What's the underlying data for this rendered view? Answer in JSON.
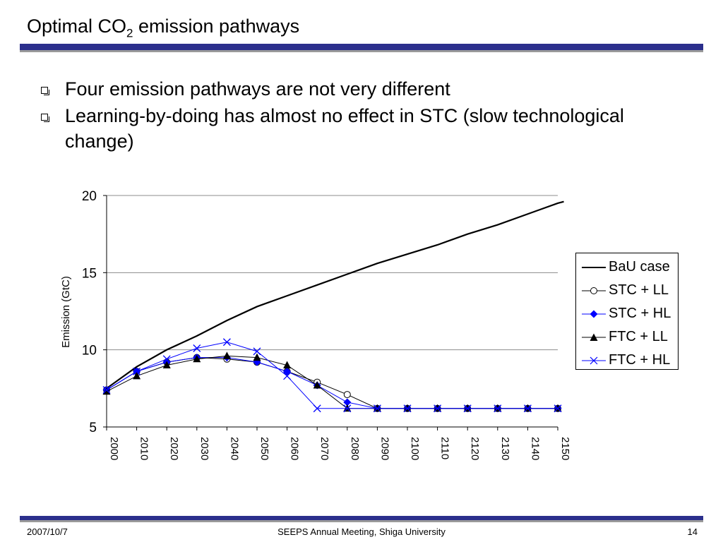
{
  "slide": {
    "title_prefix": "Optimal CO",
    "title_sub": "2",
    "title_suffix": " emission pathways",
    "bullets": [
      "Four emission pathways are not very different",
      "Learning-by-doing has almost no effect in STC (slow technological change)"
    ],
    "footer": {
      "date": "2007/10/7",
      "center": "SEEPS Annual Meeting, Shiga University",
      "page": "14"
    }
  },
  "chart_data": {
    "type": "line",
    "title": "",
    "xlabel": "",
    "ylabel": "Emission (GtC)",
    "ylim": [
      5,
      20
    ],
    "yticks": [
      5,
      10,
      15,
      20
    ],
    "grid": "horizontal",
    "legend_position": "right",
    "x": [
      2000,
      2010,
      2020,
      2030,
      2040,
      2050,
      2060,
      2070,
      2080,
      2090,
      2100,
      2110,
      2120,
      2130,
      2140,
      2150
    ],
    "xlabels": [
      "2000",
      "2010",
      "2020",
      "2030",
      "2040",
      "2050",
      "2060",
      "2070",
      "2080",
      "2090",
      "2100",
      "2110",
      "2120",
      "2130",
      "2140",
      "2150"
    ],
    "series": [
      {
        "name": "BaU case",
        "color": "#000000",
        "marker": "none",
        "x": [
          2000,
          2010,
          2020,
          2030,
          2040,
          2050,
          2060,
          2070,
          2080,
          2090,
          2100,
          2110,
          2120,
          2130,
          2140,
          2150,
          2152
        ],
        "values": [
          7.5,
          8.9,
          10.0,
          10.9,
          11.9,
          12.8,
          13.5,
          14.2,
          14.9,
          15.6,
          16.2,
          16.8,
          17.5,
          18.1,
          18.8,
          19.5,
          19.6
        ]
      },
      {
        "name": "STC + LL",
        "color": "#000000",
        "marker": "circle",
        "values": [
          7.4,
          8.6,
          9.2,
          9.5,
          9.4,
          9.2,
          8.6,
          7.9,
          7.1,
          6.2,
          6.2,
          6.2,
          6.2,
          6.2,
          6.2,
          6.2
        ]
      },
      {
        "name": "STC + HL",
        "color": "#0000ff",
        "marker": "diamond",
        "values": [
          7.4,
          8.6,
          9.2,
          9.5,
          9.5,
          9.2,
          8.6,
          7.7,
          6.6,
          6.2,
          6.2,
          6.2,
          6.2,
          6.2,
          6.2,
          6.2
        ]
      },
      {
        "name": "FTC + LL",
        "color": "#000000",
        "marker": "triangle",
        "values": [
          7.3,
          8.3,
          9.0,
          9.4,
          9.6,
          9.5,
          9.0,
          7.7,
          6.2,
          6.2,
          6.2,
          6.2,
          6.2,
          6.2,
          6.2,
          6.2
        ]
      },
      {
        "name": "FTC + HL",
        "color": "#0000ff",
        "marker": "x",
        "values": [
          7.4,
          8.6,
          9.4,
          10.1,
          10.5,
          9.9,
          8.3,
          6.2,
          6.2,
          6.2,
          6.2,
          6.2,
          6.2,
          6.2,
          6.2,
          6.2
        ]
      }
    ]
  }
}
